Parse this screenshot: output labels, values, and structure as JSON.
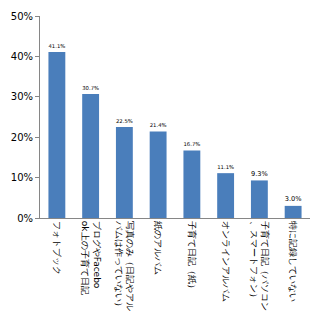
{
  "chart_data": {
    "type": "bar",
    "categories": [
      "フォトブック",
      "ブログやFacebook上の子育て日記",
      "写真のみ（日記やアルバムは作っていない）",
      "紙のアルバム",
      "子育て日記（紙）",
      "オンラインアルバム",
      "子育て日記（パソコン、スマートフォン）",
      "特に記録していない"
    ],
    "values": [
      41.1,
      30.7,
      22.5,
      21.4,
      16.7,
      11.1,
      9.3,
      3.0
    ],
    "value_labels": [
      "41.1%",
      "30.7%",
      "22.5%",
      "21.4%",
      "16.7%",
      "11.1%",
      "9.3%",
      "3.0%"
    ],
    "data_labels": true,
    "color": "#4a7ebb",
    "ylim": [
      0,
      50
    ],
    "yticks": [
      {
        "value": 0,
        "label": "0%"
      },
      {
        "value": 10,
        "label": "10%"
      },
      {
        "value": 20,
        "label": "20%"
      },
      {
        "value": 30,
        "label": "30%"
      },
      {
        "value": 40,
        "label": "40%"
      },
      {
        "value": 50,
        "label": "50%"
      }
    ],
    "grid": false
  }
}
